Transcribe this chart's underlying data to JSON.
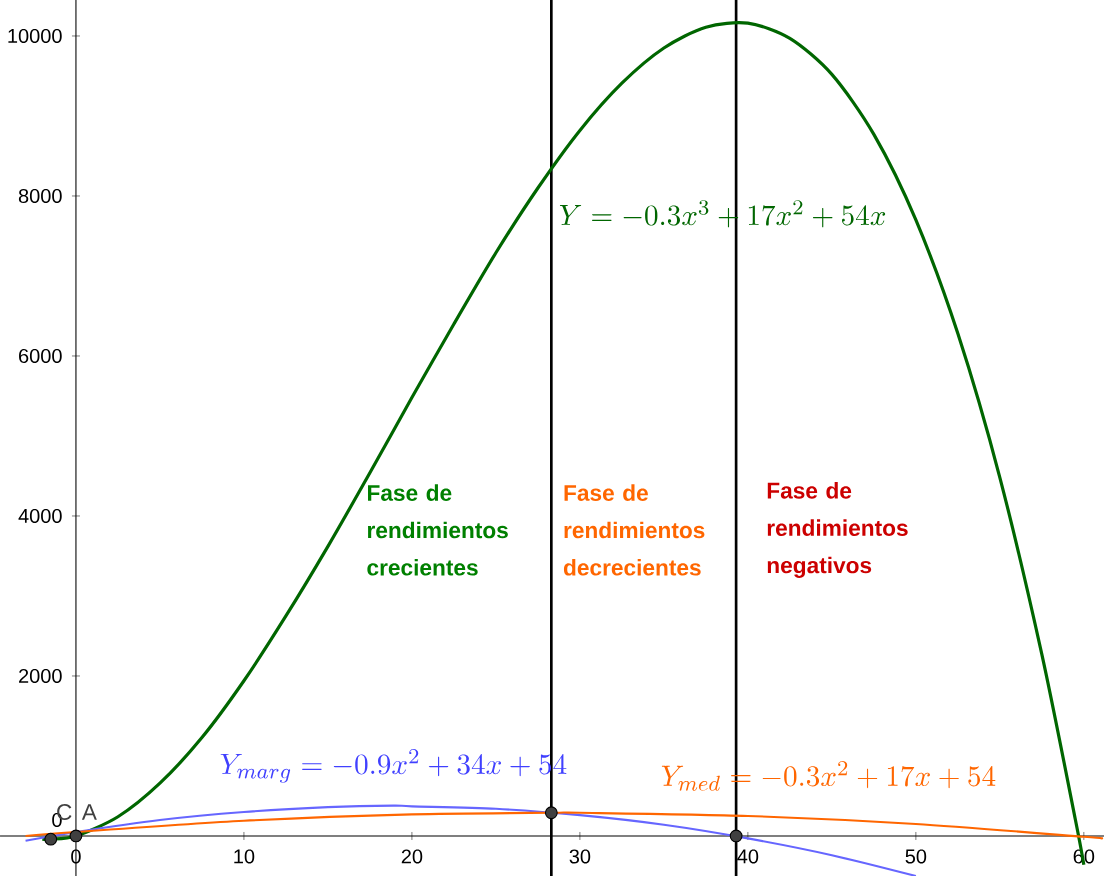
{
  "chart_data": {
    "type": "line",
    "xlim": [
      -4.52,
      61.2
    ],
    "ylim": [
      -500,
      10450
    ],
    "xticks": [
      0,
      10,
      20,
      30,
      40,
      50,
      60
    ],
    "yticks": [
      0,
      2000,
      4000,
      6000,
      8000,
      10000
    ],
    "series": [
      {
        "color": "#006600",
        "x": [
          -2,
          -1.5,
          0,
          2.5,
          5,
          7.5,
          10,
          12.5,
          15,
          17.5,
          20,
          22.5,
          25,
          27.5,
          30,
          32.5,
          35,
          37.5,
          40,
          42.5,
          45,
          47.5,
          50,
          52.5,
          55,
          57.5,
          59.5,
          60
        ],
        "values": [
          -40,
          -40,
          0,
          240,
          660,
          1230,
          1940,
          2750,
          3620,
          4540,
          5480,
          6400,
          7290,
          8100,
          8820,
          9410,
          9850,
          10110,
          10160,
          9970,
          9520,
          8770,
          7700,
          6280,
          4480,
          2270,
          200,
          -360
        ]
      },
      {
        "color": "#6666ff",
        "x": [
          -3,
          0,
          5,
          10,
          15,
          18.9,
          20,
          25,
          30,
          35,
          40,
          45,
          50
        ],
        "values": [
          -60,
          50,
          200,
          300,
          360,
          380,
          370,
          340,
          260,
          140,
          -30,
          -240,
          -500
        ]
      },
      {
        "color": "#ff6600",
        "x": [
          -3,
          0,
          10,
          20,
          28.3,
          30,
          40,
          50,
          60,
          61
        ],
        "values": [
          0,
          50,
          190,
          270,
          290,
          290,
          250,
          150,
          -10,
          -30
        ]
      },
      {
        "type": "scatter",
        "color": "#404040",
        "x": [
          -1.5,
          0,
          28.3,
          39.3
        ],
        "values": [
          -40,
          0,
          290,
          0
        ]
      }
    ],
    "ref_lines": [
      {
        "axis": "x",
        "value": 28.3,
        "color": "#000000"
      },
      {
        "axis": "x",
        "value": 39.3,
        "color": "#000000"
      }
    ],
    "annotations": [
      "Y = -0.3x^3 + 17x^2 + 54x",
      "Y_{marg} = -0.9x^2 + 34x + 54",
      "Y_{med} = -0.3x^2 + 17x + 54",
      "Fase de rendimientos crecientes",
      "Fase de rendimientos decrecientes",
      "Fase de rendimientos negativos",
      "C",
      "A"
    ]
  }
}
